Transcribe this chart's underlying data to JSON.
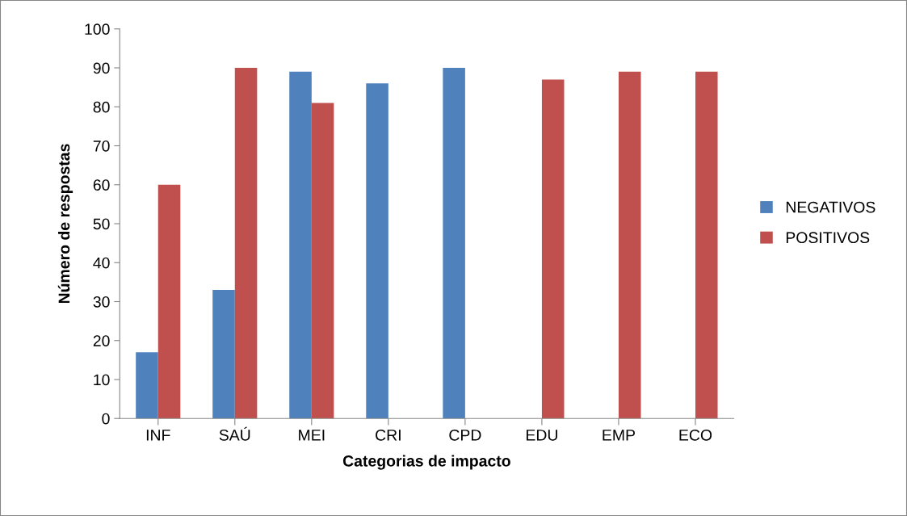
{
  "chart_data": {
    "type": "bar",
    "xlabel": "Categorias de impacto",
    "ylabel": "Número de respostas",
    "categories": [
      "INF",
      "SAÚ",
      "MEI",
      "CRI",
      "CPD",
      "EDU",
      "EMP",
      "ECO"
    ],
    "series": [
      {
        "name": "NEGATIVOS",
        "color": "#4f81bd",
        "values": [
          17,
          33,
          89,
          86,
          90,
          null,
          null,
          null
        ]
      },
      {
        "name": "POSITIVOS",
        "color": "#c0504d",
        "values": [
          60,
          90,
          81,
          null,
          null,
          87,
          89,
          89
        ]
      }
    ],
    "ylim": [
      0,
      100
    ],
    "yticks": [
      0,
      10,
      20,
      30,
      40,
      50,
      60,
      70,
      80,
      90,
      100
    ],
    "grid": false,
    "legend": "right"
  }
}
